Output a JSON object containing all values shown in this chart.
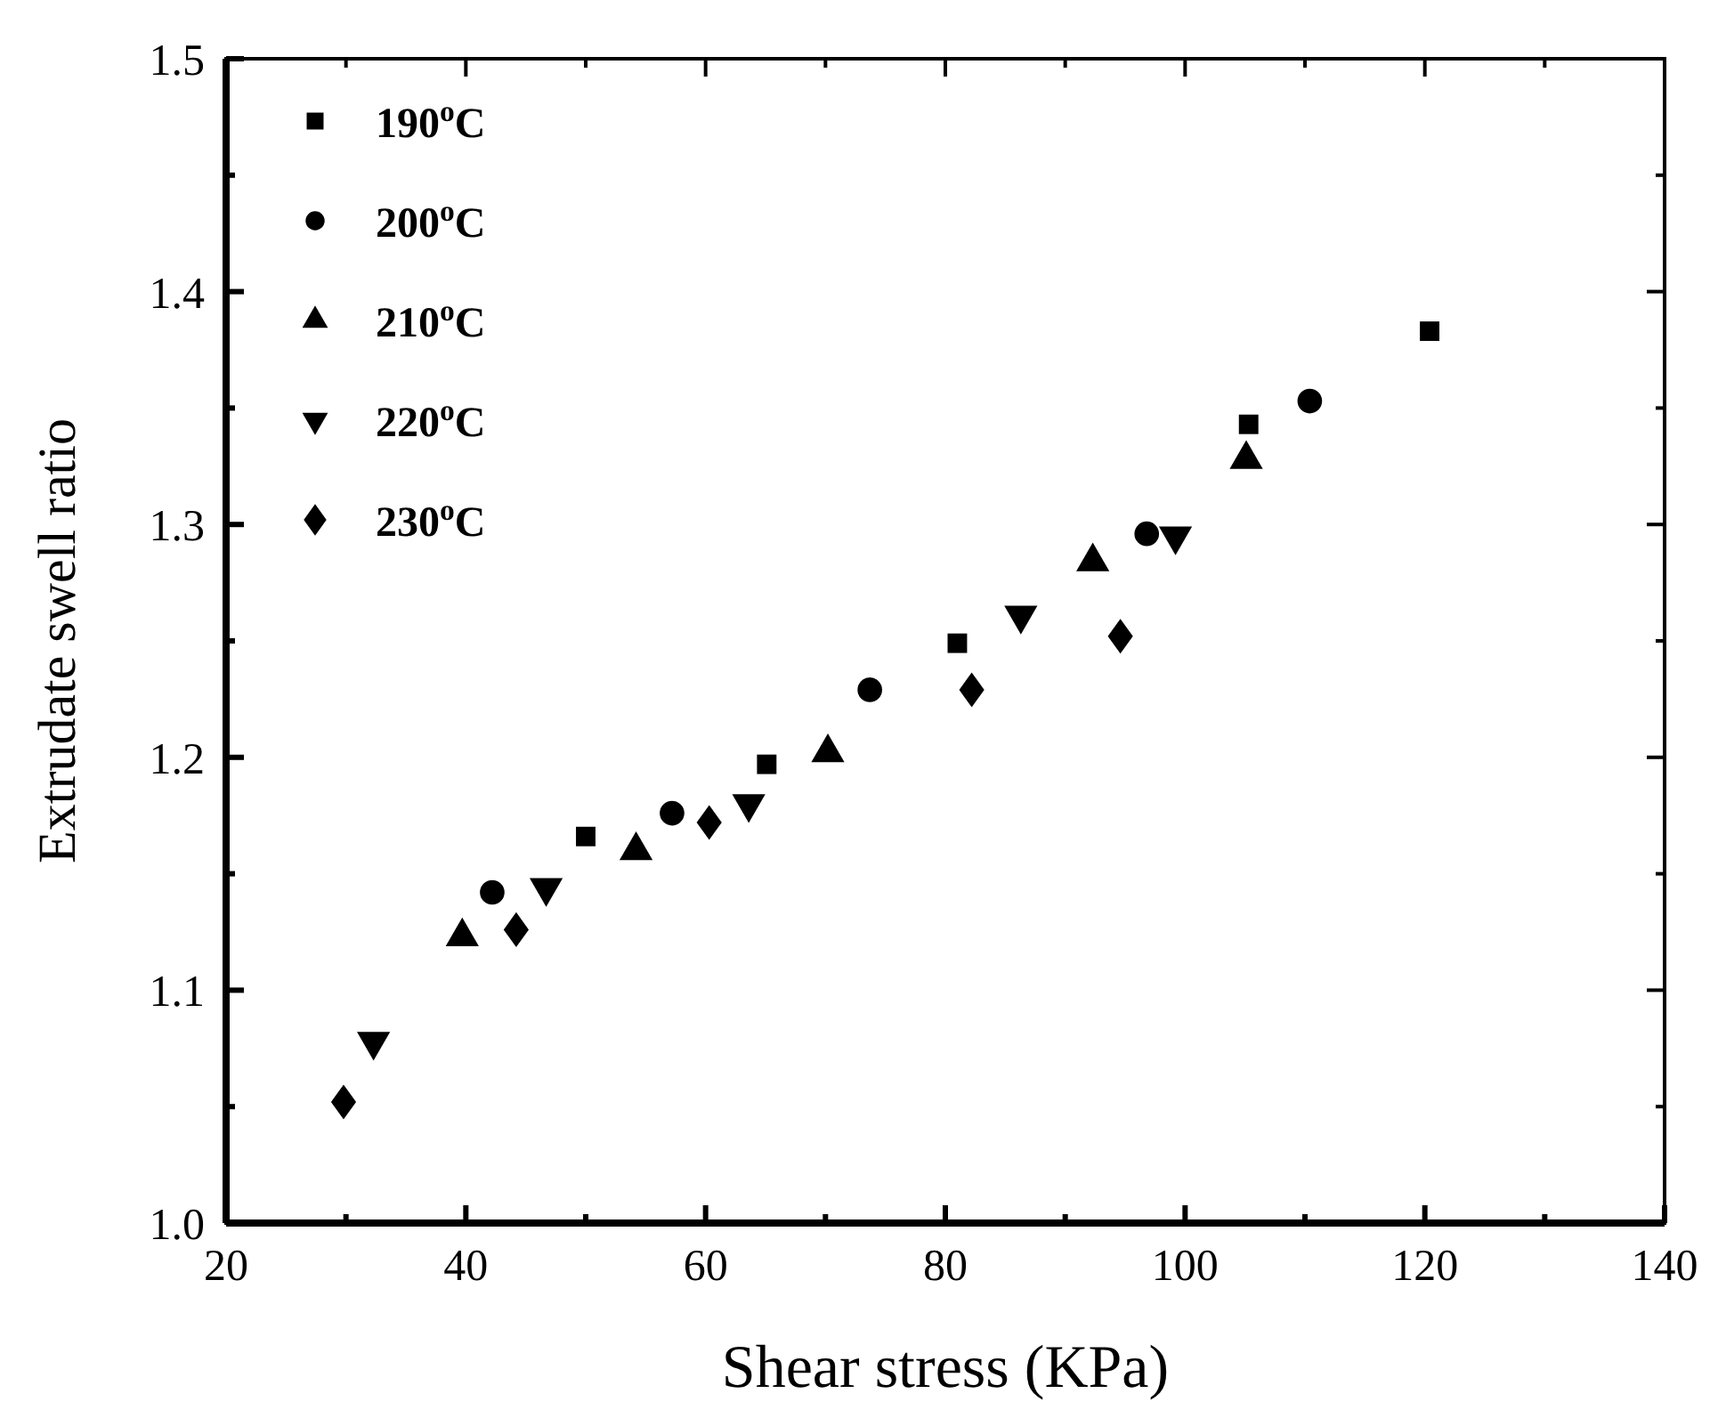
{
  "chart_data": {
    "type": "scatter",
    "xlabel": "Shear stress (KPa)",
    "ylabel": "Extrudate swell ratio",
    "xlim": [
      20,
      140
    ],
    "ylim": [
      1.0,
      1.5
    ],
    "xticks": [
      20,
      {
        "value": 30,
        "label": null
      },
      40,
      {
        "value": 50,
        "label": null
      },
      60,
      {
        "value": 70,
        "label": null
      },
      80,
      {
        "value": 90,
        "label": null
      },
      100,
      {
        "value": 110,
        "label": null
      },
      120,
      {
        "value": 130,
        "label": null
      },
      140
    ],
    "yticks": [
      {
        "value": 1.0,
        "label": "1.0"
      },
      {
        "value": 1.05,
        "label": null
      },
      1.1,
      {
        "value": 1.15,
        "label": null
      },
      1.2,
      {
        "value": 1.25,
        "label": null
      },
      1.3,
      {
        "value": 1.35,
        "label": null
      },
      1.4,
      {
        "value": 1.45,
        "label": null
      },
      1.5
    ],
    "legend": "top left",
    "grid": false,
    "series": [
      {
        "name": "190$^{o}$C",
        "color": "#000000",
        "marker": "square",
        "x": [
          50.0,
          65.1,
          81.0,
          105.3,
          120.4
        ],
        "values": [
          1.166,
          1.197,
          1.249,
          1.343,
          1.383
        ]
      },
      {
        "name": "200$^{o}$C",
        "color": "#000000",
        "marker": "circle",
        "x": [
          42.2,
          57.2,
          73.7,
          96.8,
          110.4
        ],
        "values": [
          1.142,
          1.176,
          1.229,
          1.296,
          1.353
        ]
      },
      {
        "name": "210$^{o}$C",
        "color": "#000000",
        "marker": "triangle",
        "x": [
          39.7,
          54.2,
          70.2,
          92.3,
          105.1
        ],
        "values": [
          1.123,
          1.16,
          1.202,
          1.284,
          1.328
        ]
      },
      {
        "name": "220$^{o}$C",
        "color": "#000000",
        "marker": "triangle-down",
        "x": [
          32.3,
          46.7,
          63.6,
          86.3,
          99.2
        ],
        "values": [
          1.078,
          1.144,
          1.18,
          1.261,
          1.295
        ]
      },
      {
        "name": "230$^{o}$C",
        "color": "#000000",
        "marker": "diamond",
        "x": [
          29.8,
          44.2,
          60.3,
          82.2,
          94.6
        ],
        "values": [
          1.052,
          1.126,
          1.172,
          1.229,
          1.252
        ]
      }
    ]
  }
}
